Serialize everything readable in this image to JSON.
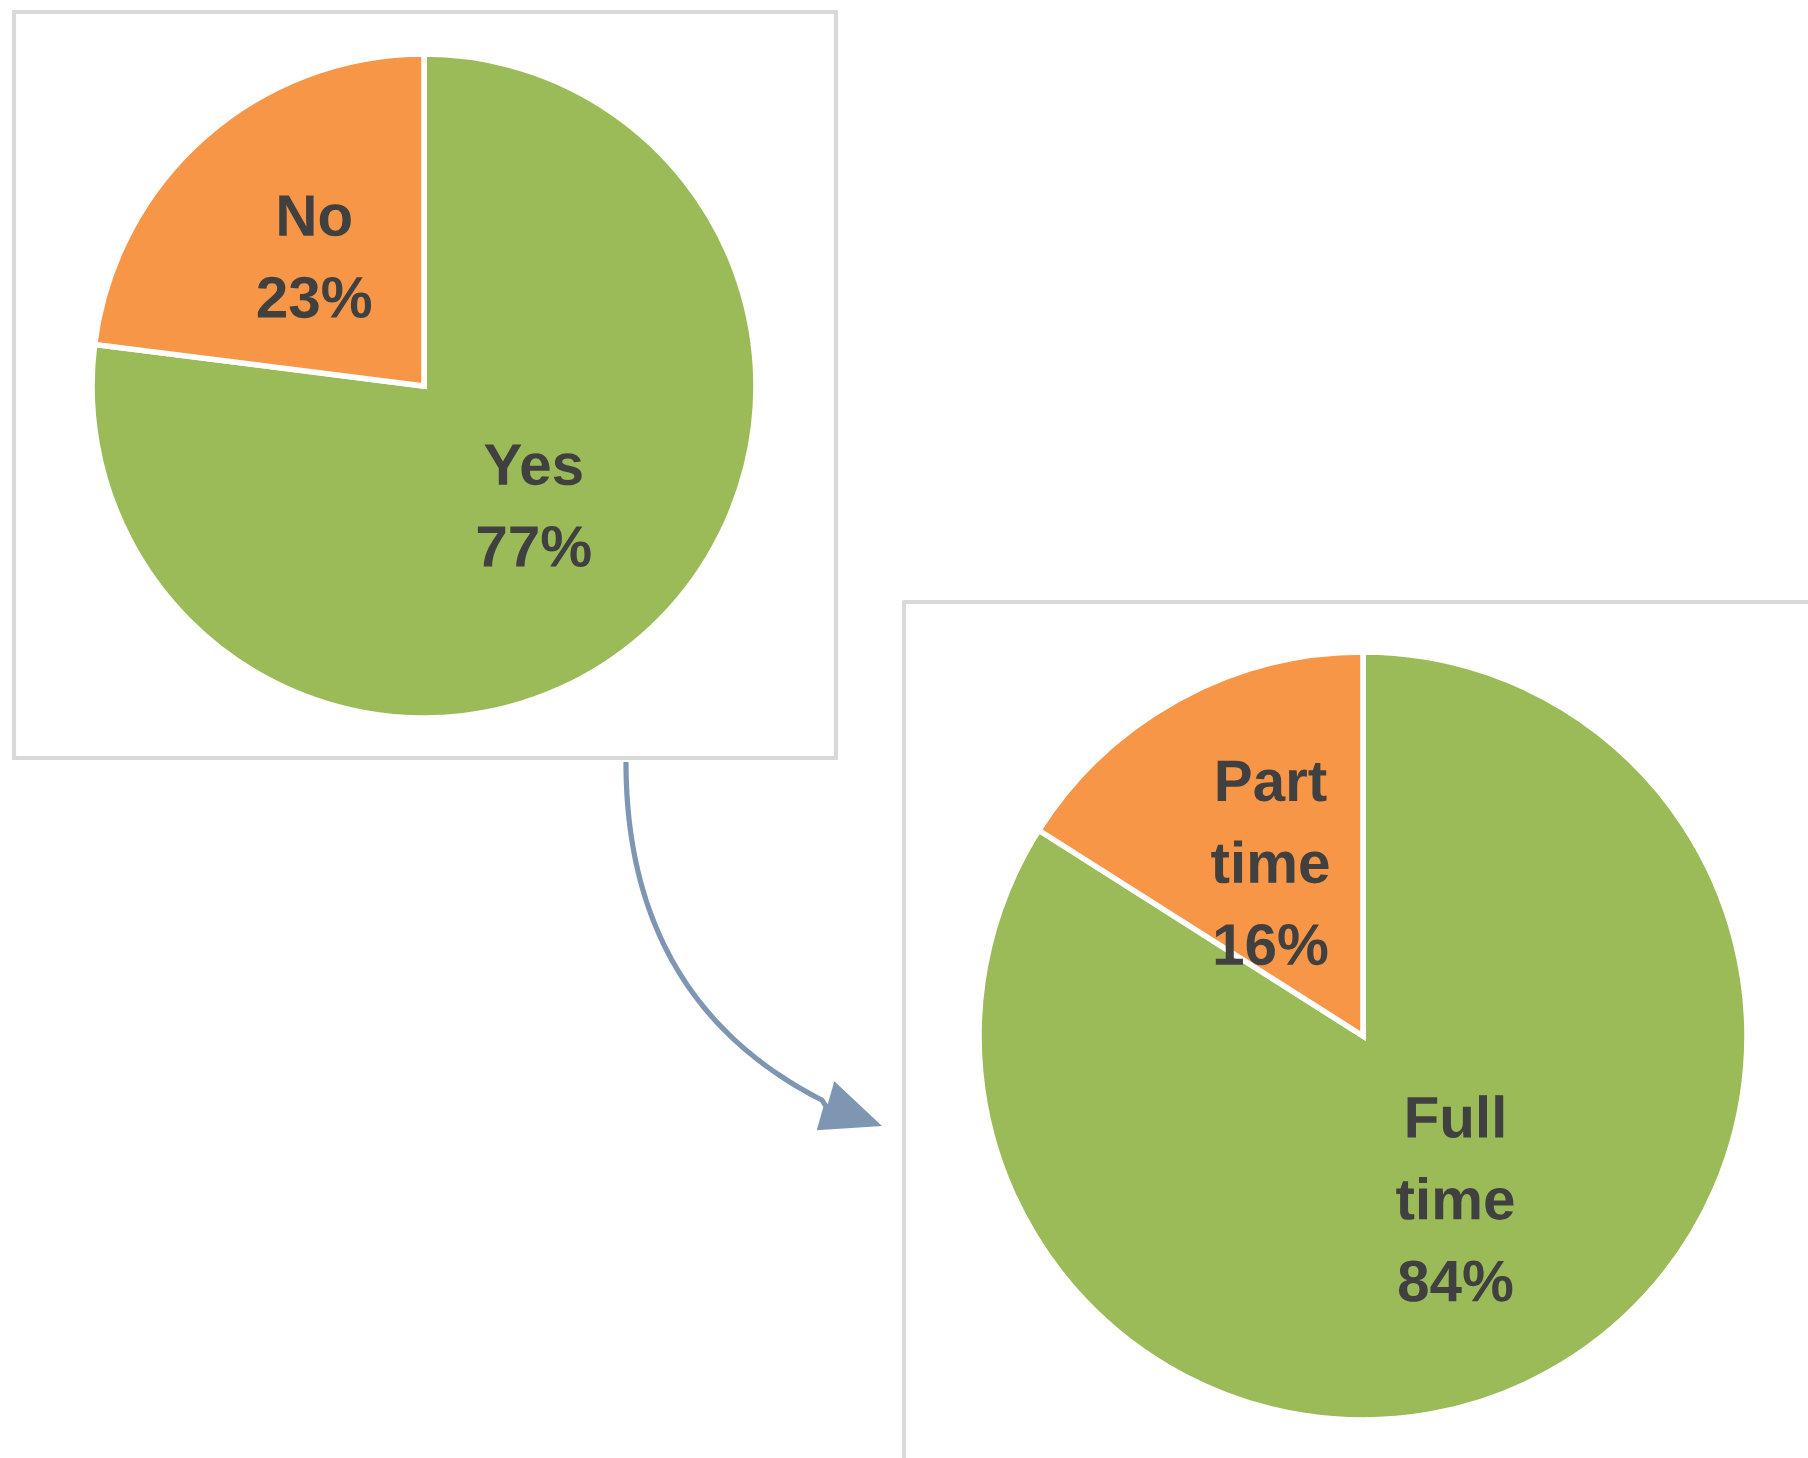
{
  "chart_data": [
    {
      "type": "pie",
      "categories": [
        "Yes",
        "No"
      ],
      "values": [
        77,
        23
      ],
      "colors": [
        "#9bbb59",
        "#f79646"
      ],
      "value_labels": [
        "77%",
        "23%"
      ]
    },
    {
      "type": "pie",
      "categories": [
        "Full time",
        "Part time"
      ],
      "values": [
        84,
        16
      ],
      "colors": [
        "#9bbb59",
        "#f79646"
      ],
      "value_labels": [
        "84%",
        "16%"
      ]
    }
  ]
}
